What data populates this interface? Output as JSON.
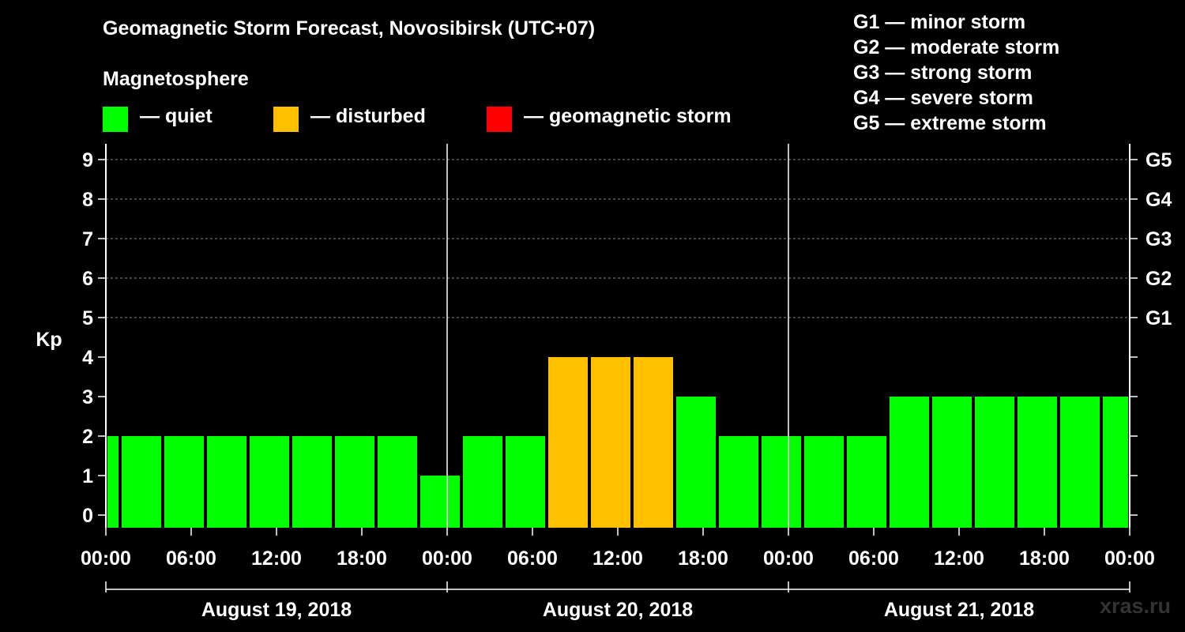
{
  "title": "Geomagnetic Storm Forecast, Novosibirsk (UTC+07)",
  "subtitle": "Magnetosphere",
  "legend": [
    {
      "color": "#00ff00",
      "label": "— quiet"
    },
    {
      "color": "#ffc000",
      "label": "— disturbed"
    },
    {
      "color": "#ff0000",
      "label": "— geomagnetic storm"
    }
  ],
  "g_scale": [
    "G1 — minor storm",
    "G2 — moderate storm",
    "G3 — strong storm",
    "G4 — severe storm",
    "G5 — extreme storm"
  ],
  "watermark": "xras.ru",
  "colors": {
    "quiet": "#00ff00",
    "disturbed": "#ffc000",
    "storm": "#ff0000"
  },
  "chart_data": {
    "type": "bar",
    "title": "Geomagnetic Storm Forecast, Novosibirsk (UTC+07)",
    "ylabel": "Kp",
    "ylim": [
      0,
      9
    ],
    "yticks": [
      0,
      1,
      2,
      3,
      4,
      5,
      6,
      7,
      8,
      9
    ],
    "right_ticks": [
      {
        "kp": 5,
        "label": "G1"
      },
      {
        "kp": 6,
        "label": "G2"
      },
      {
        "kp": 7,
        "label": "G3"
      },
      {
        "kp": 8,
        "label": "G4"
      },
      {
        "kp": 9,
        "label": "G5"
      }
    ],
    "x_range_hours": [
      0,
      72
    ],
    "x_tick_hours": [
      0,
      6,
      12,
      18,
      24,
      30,
      36,
      42,
      48,
      54,
      60,
      66,
      72
    ],
    "x_tick_labels": [
      "00:00",
      "06:00",
      "12:00",
      "18:00",
      "00:00",
      "06:00",
      "12:00",
      "18:00",
      "00:00",
      "06:00",
      "12:00",
      "18:00",
      "00:00"
    ],
    "day_boundaries_hours": [
      24,
      48
    ],
    "days": [
      {
        "label": "August 19, 2018",
        "start": 0,
        "end": 24
      },
      {
        "label": "August 20, 2018",
        "start": 24,
        "end": 48
      },
      {
        "label": "August 21, 2018",
        "start": 48,
        "end": 72
      }
    ],
    "bars": [
      {
        "start": 0,
        "end": 1,
        "kp": 2,
        "status": "quiet"
      },
      {
        "start": 1,
        "end": 4,
        "kp": 2,
        "status": "quiet"
      },
      {
        "start": 4,
        "end": 7,
        "kp": 2,
        "status": "quiet"
      },
      {
        "start": 7,
        "end": 10,
        "kp": 2,
        "status": "quiet"
      },
      {
        "start": 10,
        "end": 13,
        "kp": 2,
        "status": "quiet"
      },
      {
        "start": 13,
        "end": 16,
        "kp": 2,
        "status": "quiet"
      },
      {
        "start": 16,
        "end": 19,
        "kp": 2,
        "status": "quiet"
      },
      {
        "start": 19,
        "end": 22,
        "kp": 2,
        "status": "quiet"
      },
      {
        "start": 22,
        "end": 25,
        "kp": 1,
        "status": "quiet"
      },
      {
        "start": 25,
        "end": 28,
        "kp": 2,
        "status": "quiet"
      },
      {
        "start": 28,
        "end": 31,
        "kp": 2,
        "status": "quiet"
      },
      {
        "start": 31,
        "end": 34,
        "kp": 4,
        "status": "disturbed"
      },
      {
        "start": 34,
        "end": 37,
        "kp": 4,
        "status": "disturbed"
      },
      {
        "start": 37,
        "end": 40,
        "kp": 4,
        "status": "disturbed"
      },
      {
        "start": 40,
        "end": 43,
        "kp": 3,
        "status": "quiet"
      },
      {
        "start": 43,
        "end": 46,
        "kp": 2,
        "status": "quiet"
      },
      {
        "start": 46,
        "end": 49,
        "kp": 2,
        "status": "quiet"
      },
      {
        "start": 49,
        "end": 52,
        "kp": 2,
        "status": "quiet"
      },
      {
        "start": 52,
        "end": 55,
        "kp": 2,
        "status": "quiet"
      },
      {
        "start": 55,
        "end": 58,
        "kp": 3,
        "status": "quiet"
      },
      {
        "start": 58,
        "end": 61,
        "kp": 3,
        "status": "quiet"
      },
      {
        "start": 61,
        "end": 64,
        "kp": 3,
        "status": "quiet"
      },
      {
        "start": 64,
        "end": 67,
        "kp": 3,
        "status": "quiet"
      },
      {
        "start": 67,
        "end": 70,
        "kp": 3,
        "status": "quiet"
      },
      {
        "start": 70,
        "end": 72,
        "kp": 3,
        "status": "quiet"
      }
    ]
  }
}
